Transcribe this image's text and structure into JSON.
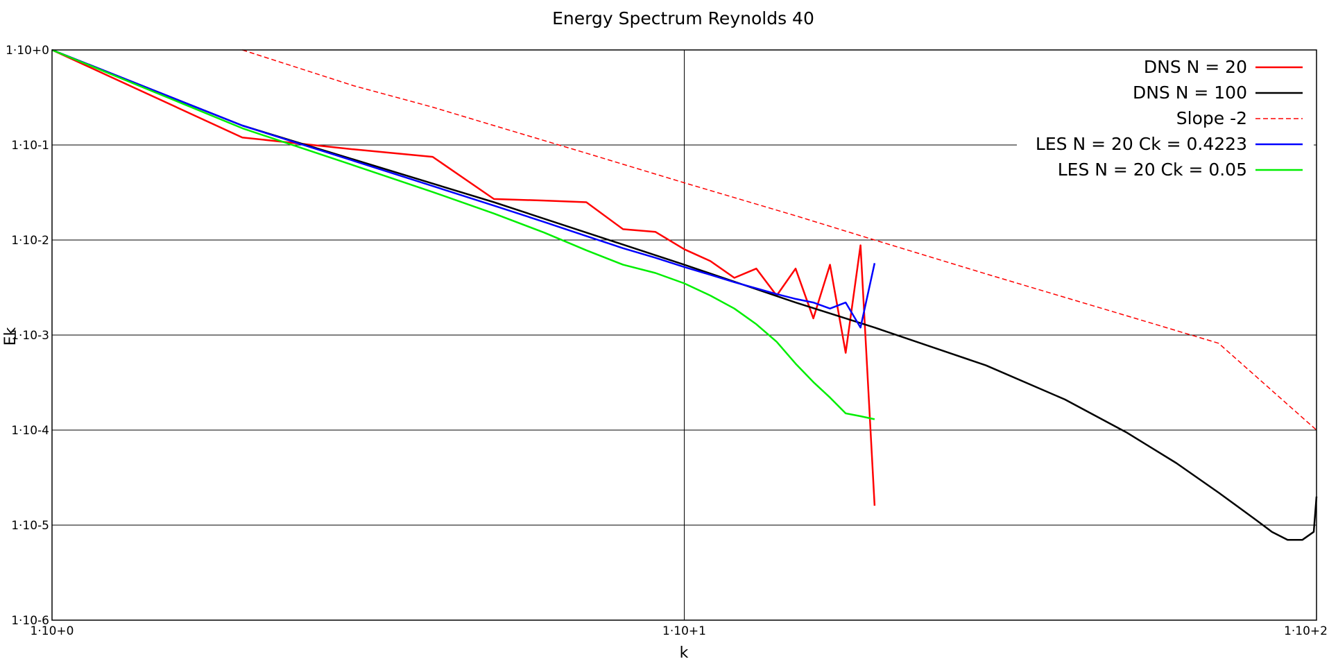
{
  "chart_data": {
    "type": "line",
    "title": "Energy Spectrum Reynolds 40",
    "xlabel": "k",
    "ylabel": "Ek",
    "xscale": "log",
    "yscale": "log",
    "xlim": [
      1,
      100
    ],
    "ylim": [
      1e-06,
      1
    ],
    "x_ticks": [
      {
        "value": 1,
        "label": "1·10+0"
      },
      {
        "value": 10,
        "label": "1·10+1"
      },
      {
        "value": 100,
        "label": "1·10+2"
      }
    ],
    "y_ticks": [
      {
        "value": 1,
        "label": "1·10+0"
      },
      {
        "value": 0.1,
        "label": "1·10-1"
      },
      {
        "value": 0.01,
        "label": "1·10-2"
      },
      {
        "value": 0.001,
        "label": "1·10-3"
      },
      {
        "value": 0.0001,
        "label": "1·10-4"
      },
      {
        "value": 1e-05,
        "label": "1·10-5"
      },
      {
        "value": 1e-06,
        "label": "1·10-6"
      }
    ],
    "grid": true,
    "legend_position": "top-right",
    "series": [
      {
        "name": "DNS N = 20",
        "color": "#ff0000",
        "dash": "solid",
        "x": [
          1,
          2,
          3,
          4,
          5,
          6,
          7,
          8,
          9,
          10,
          11,
          12,
          13,
          14,
          15,
          16,
          17,
          18,
          19,
          20
        ],
        "y": [
          1,
          0.12,
          0.09,
          0.075,
          0.027,
          0.026,
          0.025,
          0.013,
          0.0122,
          0.008,
          0.006,
          0.004,
          0.005,
          0.0026,
          0.005,
          0.0015,
          0.0055,
          0.00065,
          0.0088,
          1.6e-05
        ]
      },
      {
        "name": "DNS N = 100",
        "color": "#000000",
        "dash": "solid",
        "x": [
          1,
          2,
          5,
          10,
          15,
          20,
          30,
          40,
          50,
          60,
          70,
          80,
          85,
          90,
          95,
          99,
          100
        ],
        "y": [
          1,
          0.16,
          0.025,
          0.0055,
          0.0022,
          0.0012,
          0.00048,
          0.00021,
          9.5e-05,
          4.5e-05,
          2.2e-05,
          1.15e-05,
          8.5e-06,
          7e-06,
          7e-06,
          8.5e-06,
          2e-05
        ]
      },
      {
        "name": "Slope -2",
        "color": "#ff0000",
        "dash": "dashed",
        "x": [
          2,
          3,
          4,
          5,
          7,
          10,
          15,
          20,
          30,
          50,
          70,
          100
        ],
        "y": [
          1,
          0.42,
          0.25,
          0.16,
          0.082,
          0.04,
          0.018,
          0.01,
          0.0044,
          0.0016,
          0.00082,
          0.0001
        ]
      },
      {
        "name": "LES N = 20 Ck = 0.4223",
        "color": "#0000ff",
        "dash": "solid",
        "x": [
          1,
          2,
          3,
          4,
          5,
          6,
          7,
          8,
          9,
          10,
          11,
          12,
          13,
          14,
          15,
          16,
          17,
          18,
          19,
          20
        ],
        "y": [
          1,
          0.16,
          0.068,
          0.037,
          0.023,
          0.0155,
          0.011,
          0.0082,
          0.0065,
          0.0052,
          0.0043,
          0.0036,
          0.0031,
          0.0027,
          0.0024,
          0.0022,
          0.0019,
          0.0022,
          0.0012,
          0.0057
        ]
      },
      {
        "name": "LES N = 20 Ck = 0.05",
        "color": "#00ee00",
        "dash": "solid",
        "x": [
          1,
          2,
          3,
          4,
          5,
          6,
          7,
          8,
          9,
          10,
          11,
          12,
          13,
          14,
          15,
          16,
          17,
          18,
          19,
          20
        ],
        "y": [
          1,
          0.15,
          0.061,
          0.032,
          0.019,
          0.012,
          0.0078,
          0.0055,
          0.0045,
          0.0035,
          0.0026,
          0.0019,
          0.0013,
          0.00085,
          0.0005,
          0.00032,
          0.00022,
          0.00015,
          0.00014,
          0.00013
        ]
      }
    ]
  }
}
